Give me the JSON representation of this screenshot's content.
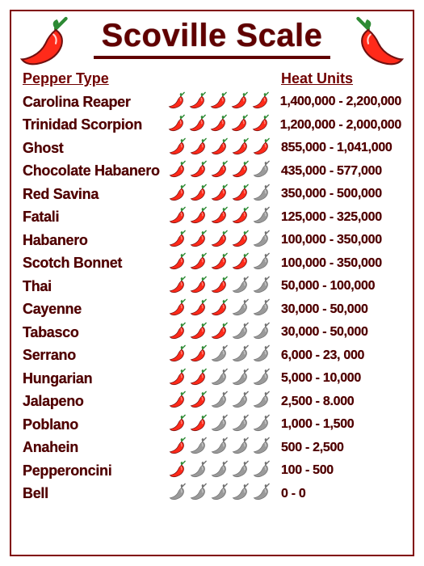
{
  "title": "Scoville Scale",
  "headers": {
    "pepper_type": "Pepper Type",
    "heat_units": "Heat Units"
  },
  "colors": {
    "border": "#800000",
    "text": "#500000",
    "title": "#600000",
    "pepper_red": "#ff2a1a",
    "pepper_gray": "#9a9a9a",
    "leaf": "#2d8a34",
    "outline": "#701010",
    "background": "#ffffff"
  },
  "icon_size": {
    "small": 24,
    "large": 70
  },
  "rows": [
    {
      "name": "Carolina Reaper",
      "units": "1,400,000 - 2,200,000",
      "rating": 5
    },
    {
      "name": "Trinidad Scorpion",
      "units": "1,200,000 - 2,000,000",
      "rating": 5
    },
    {
      "name": "Ghost",
      "units": "855,000 - 1,041,000",
      "rating": 5
    },
    {
      "name": "Chocolate Habanero",
      "units": "435,000 - 577,000",
      "rating": 4
    },
    {
      "name": "Red Savina",
      "units": "350,000 - 500,000",
      "rating": 4
    },
    {
      "name": "Fatali",
      "units": "125,000 - 325,000",
      "rating": 4
    },
    {
      "name": "Habanero",
      "units": "100,000 - 350,000",
      "rating": 4
    },
    {
      "name": "Scotch Bonnet",
      "units": "100,000 - 350,000",
      "rating": 4
    },
    {
      "name": "Thai",
      "units": "50,000 - 100,000",
      "rating": 3
    },
    {
      "name": "Cayenne",
      "units": "30,000 - 50,000",
      "rating": 3
    },
    {
      "name": "Tabasco",
      "units": "30,000 - 50,000",
      "rating": 3
    },
    {
      "name": "Serrano",
      "units": "6,000 - 23, 000",
      "rating": 2
    },
    {
      "name": "Hungarian",
      "units": "5,000 - 10,000",
      "rating": 2
    },
    {
      "name": "Jalapeno",
      "units": "2,500 - 8.000",
      "rating": 2
    },
    {
      "name": "Poblano",
      "units": "1,000 - 1,500",
      "rating": 2
    },
    {
      "name": "Anahein",
      "units": "500 - 2,500",
      "rating": 1
    },
    {
      "name": "Pepperoncini",
      "units": "100 - 500",
      "rating": 1
    },
    {
      "name": "Bell",
      "units": "0 - 0",
      "rating": 0
    }
  ]
}
